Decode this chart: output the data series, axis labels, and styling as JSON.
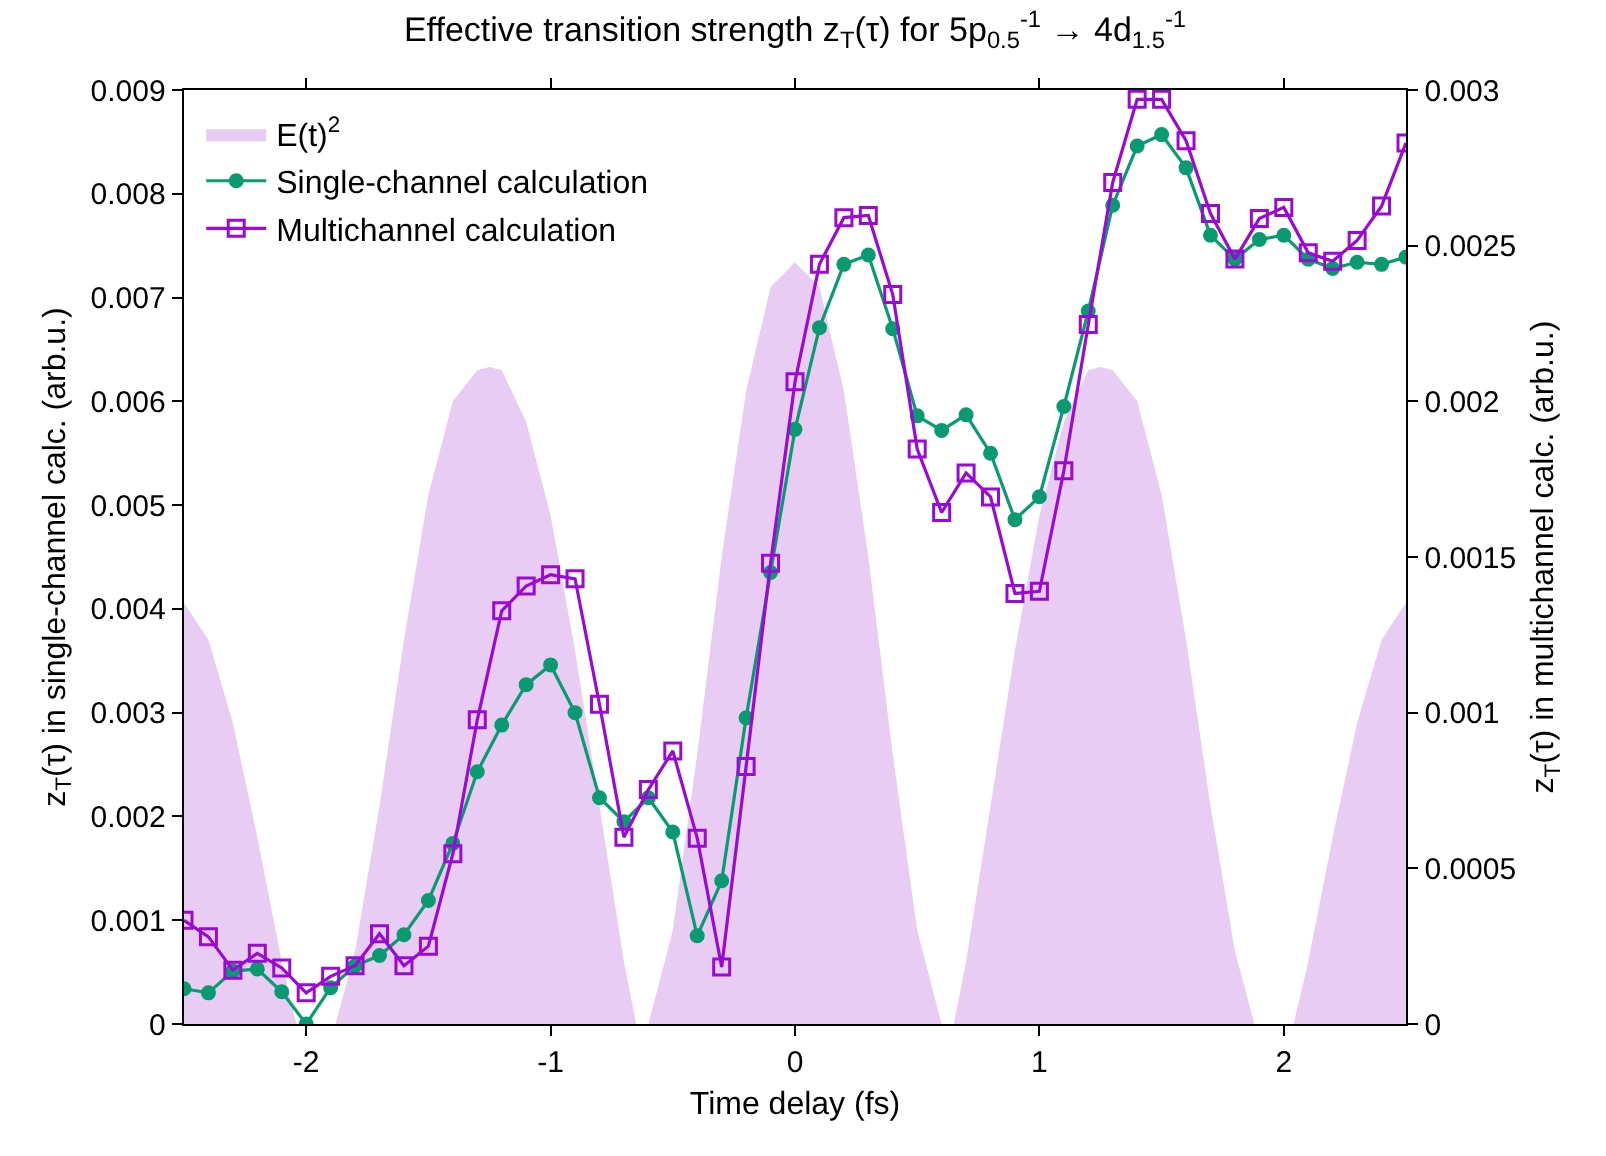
{
  "chart_data": {
    "type": "line",
    "title": "Effective transition strength z$_{T}$(τ) for 5p$_{0.5}$$^{-1}$ → 4d$_{1.5}$$^{-1}$",
    "xlabel": "Time delay (fs)",
    "ylabel": "z$_{T}$(τ) in single-channel calc. (arb.u.)",
    "y2label": "z$_{T}$(τ) in multichannel calc. (arb.u.)",
    "x": [
      -2.5,
      -2.4,
      -2.3,
      -2.2,
      -2.1,
      -2.0,
      -1.9,
      -1.8,
      -1.7,
      -1.6,
      -1.5,
      -1.4,
      -1.3,
      -1.2,
      -1.1,
      -1.0,
      -0.9,
      -0.8,
      -0.7,
      -0.6,
      -0.5,
      -0.4,
      -0.3,
      -0.2,
      -0.1,
      0.0,
      0.1,
      0.2,
      0.3,
      0.4,
      0.5,
      0.6,
      0.7,
      0.8,
      0.9,
      1.0,
      1.1,
      1.2,
      1.3,
      1.4,
      1.5,
      1.6,
      1.7,
      1.8,
      1.9,
      2.0,
      2.1,
      2.2,
      2.3,
      2.4,
      2.5
    ],
    "series": [
      {
        "name": "E(t)$^{2}$",
        "type": "area",
        "color": "#e8ccf4",
        "marker": "none",
        "x": [
          -2.5,
          -2.4,
          -2.3,
          -2.2,
          -2.1,
          -2.04,
          -1.88,
          -1.8,
          -1.7,
          -1.6,
          -1.5,
          -1.4,
          -1.3,
          -1.25,
          -1.2,
          -1.1,
          -1.0,
          -0.9,
          -0.8,
          -0.7,
          -0.65,
          -0.6,
          -0.5,
          -0.4,
          -0.3,
          -0.2,
          -0.1,
          0,
          0.1,
          0.2,
          0.3,
          0.4,
          0.5,
          0.6,
          0.65,
          0.7,
          0.8,
          0.9,
          1.0,
          1.1,
          1.2,
          1.25,
          1.3,
          1.4,
          1.5,
          1.6,
          1.7,
          1.8,
          1.88,
          2.04,
          2.1,
          2.2,
          2.3,
          2.4,
          2.5
        ],
        "values": [
          0.00406,
          0.0037,
          0.0029,
          0.0018,
          0.0006,
          0,
          0,
          0.0007,
          0.0021,
          0.0037,
          0.0051,
          0.006,
          0.0063,
          0.00633,
          0.0063,
          0.0058,
          0.0049,
          0.0036,
          0.0021,
          0.0006,
          0,
          0,
          0.0009,
          0.0026,
          0.0045,
          0.0061,
          0.0071,
          0.00734,
          0.0071,
          0.0061,
          0.0045,
          0.0026,
          0.0009,
          0,
          0,
          0.0006,
          0.0021,
          0.0036,
          0.0049,
          0.0058,
          0.0063,
          0.00633,
          0.0063,
          0.006,
          0.0051,
          0.0037,
          0.0021,
          0.0007,
          0,
          0,
          0.0006,
          0.0018,
          0.0029,
          0.0037,
          0.00406
        ]
      },
      {
        "name": "Single-channel calculation",
        "color": "#0a9a72",
        "marker": "circle",
        "values": [
          0.00034,
          0.0003,
          0.00051,
          0.00053,
          0.00031,
          0,
          0.00035,
          0.00056,
          0.00066,
          0.00086,
          0.00119,
          0.00174,
          0.00243,
          0.00288,
          0.00327,
          0.00346,
          0.003,
          0.00218,
          0.00195,
          0.00218,
          0.00185,
          0.00085,
          0.00138,
          0.00295,
          0.00435,
          0.00573,
          0.00671,
          0.00732,
          0.00741,
          0.0067,
          0.00586,
          0.00572,
          0.00587,
          0.0055,
          0.00486,
          0.00508,
          0.00595,
          0.00687,
          0.00789,
          0.00846,
          0.00857,
          0.00825,
          0.0076,
          0.00737,
          0.00756,
          0.0076,
          0.00737,
          0.00728,
          0.00734,
          0.00732,
          0.00739
        ]
      },
      {
        "name": "Multichannel calculation",
        "color": "#9a0ad6",
        "marker": "square",
        "axis": "y2",
        "values": [
          0.000333,
          0.00028,
          0.000173,
          0.000227,
          0.00018,
          0.0001,
          0.000153,
          0.000187,
          0.00029,
          0.000187,
          0.00025,
          0.000547,
          0.000977,
          0.001327,
          0.001407,
          0.001443,
          0.00143,
          0.001027,
          0.0006,
          0.000753,
          0.000877,
          0.000597,
          0.000183,
          0.000827,
          0.00148,
          0.002063,
          0.00244,
          0.00259,
          0.002597,
          0.002343,
          0.001847,
          0.001643,
          0.00177,
          0.001693,
          0.001383,
          0.00139,
          0.001777,
          0.002247,
          0.002703,
          0.00297,
          0.00297,
          0.002837,
          0.002603,
          0.002457,
          0.002587,
          0.002623,
          0.002477,
          0.00245,
          0.002517,
          0.002627,
          0.00283
        ]
      }
    ],
    "xlim": [
      -2.5,
      2.5
    ],
    "xticks": [
      -2,
      -1,
      0,
      1,
      2
    ],
    "ylim": [
      0,
      0.009
    ],
    "yticks": [
      0,
      0.001,
      0.002,
      0.003,
      0.004,
      0.005,
      0.006,
      0.007,
      0.008,
      0.009
    ],
    "y2lim": [
      0,
      0.003
    ],
    "y2ticks": [
      0,
      0.0005,
      0.001,
      0.0015,
      0.002,
      0.0025,
      0.003
    ],
    "grid": false,
    "legend": "top left"
  }
}
